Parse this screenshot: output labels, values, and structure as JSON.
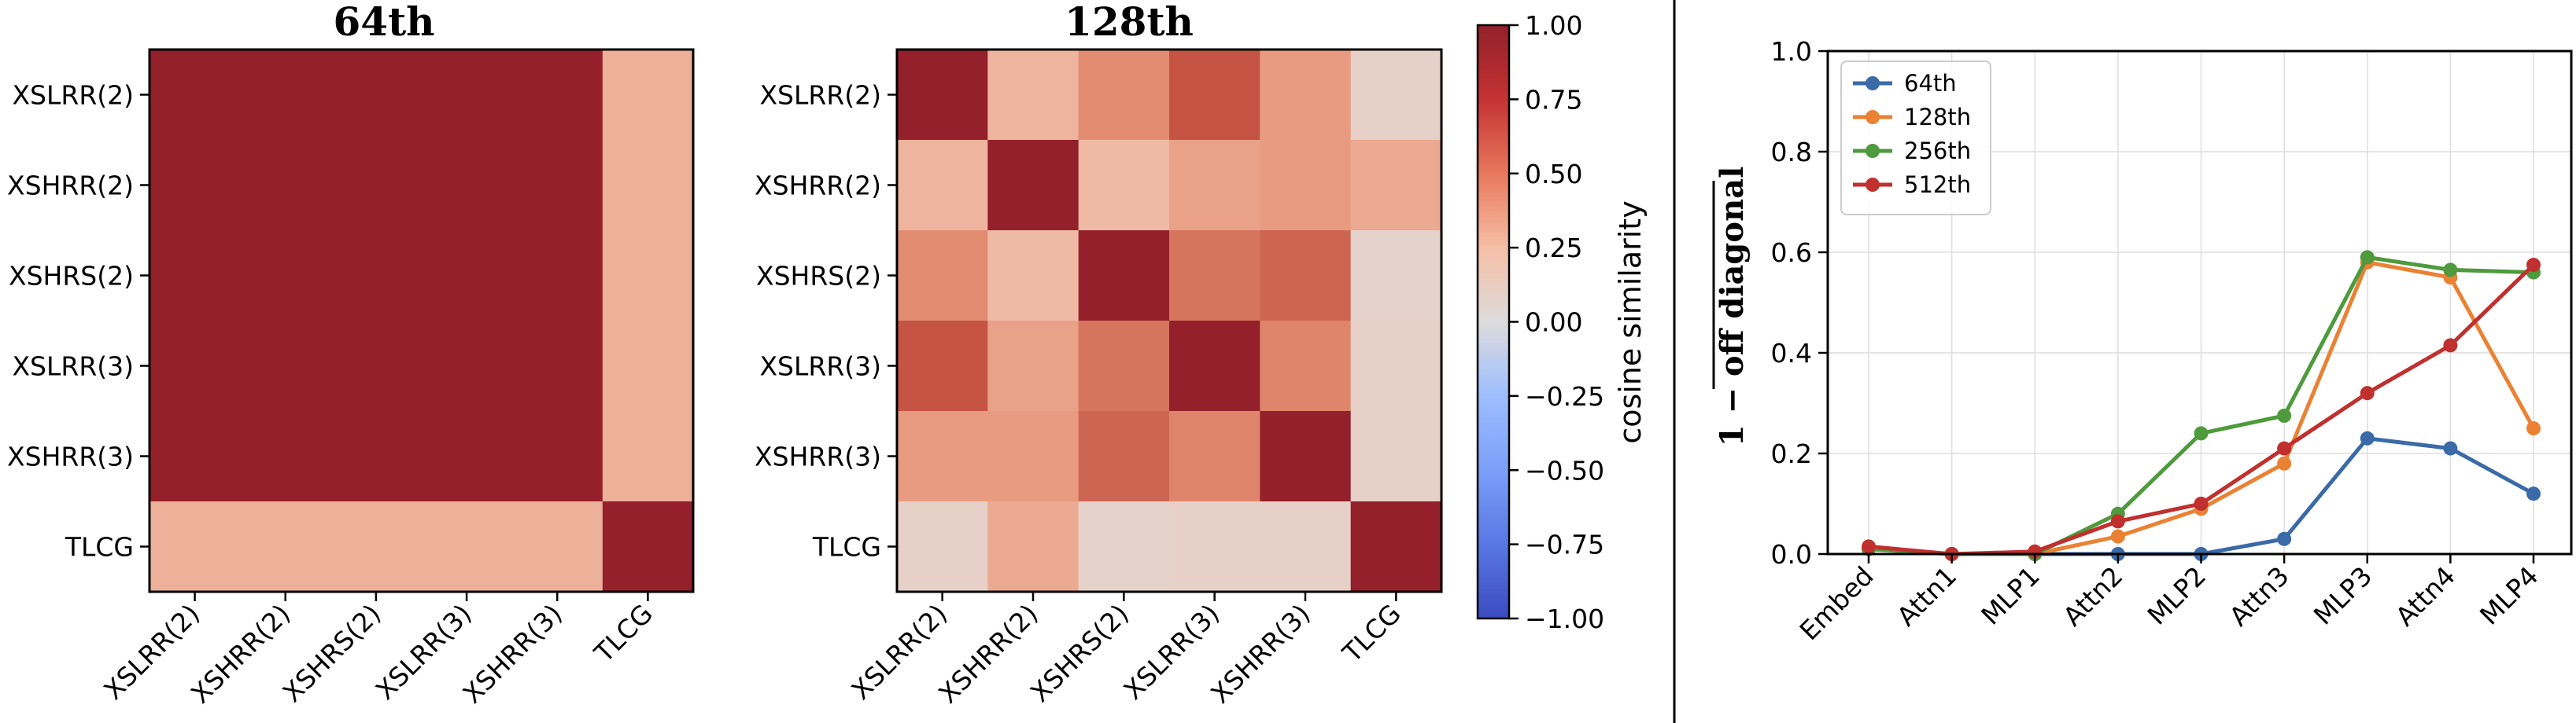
{
  "chart_data": [
    {
      "type": "heatmap",
      "title": "64th",
      "rows": [
        "XSLRR(2)",
        "XSHRR(2)",
        "XSHRS(2)",
        "XSLRR(3)",
        "XSHRR(3)",
        "TLCG"
      ],
      "cols": [
        "XSLRR(2)",
        "XSHRR(2)",
        "XSHRS(2)",
        "XSLRR(3)",
        "XSHRR(3)",
        "TLCG"
      ],
      "values": [
        [
          1.0,
          1.0,
          1.0,
          1.0,
          1.0,
          0.35
        ],
        [
          1.0,
          1.0,
          1.0,
          1.0,
          1.0,
          0.35
        ],
        [
          1.0,
          1.0,
          1.0,
          1.0,
          1.0,
          0.35
        ],
        [
          1.0,
          1.0,
          1.0,
          1.0,
          1.0,
          0.35
        ],
        [
          1.0,
          1.0,
          1.0,
          1.0,
          1.0,
          0.35
        ],
        [
          0.35,
          0.35,
          0.35,
          0.35,
          0.35,
          1.0
        ]
      ]
    },
    {
      "type": "heatmap",
      "title": "128th",
      "rows": [
        "XSLRR(2)",
        "XSHRR(2)",
        "XSHRS(2)",
        "XSLRR(3)",
        "XSHRR(3)",
        "TLCG"
      ],
      "cols": [
        "XSLRR(2)",
        "XSHRR(2)",
        "XSHRS(2)",
        "XSLRR(3)",
        "XSHRR(3)",
        "TLCG"
      ],
      "values": [
        [
          1.0,
          0.33,
          0.52,
          0.75,
          0.45,
          0.12
        ],
        [
          0.33,
          1.0,
          0.3,
          0.42,
          0.45,
          0.38
        ],
        [
          0.52,
          0.3,
          1.0,
          0.62,
          0.68,
          0.1
        ],
        [
          0.75,
          0.42,
          0.62,
          1.0,
          0.55,
          0.12
        ],
        [
          0.45,
          0.45,
          0.68,
          0.55,
          1.0,
          0.12
        ],
        [
          0.12,
          0.38,
          0.1,
          0.12,
          0.12,
          1.0
        ]
      ],
      "colorbar": {
        "label": "cosine similarity",
        "range": [
          -1.0,
          1.0
        ],
        "ticks": [
          "1.00",
          "0.75",
          "0.50",
          "0.25",
          "0.00",
          "−0.25",
          "−0.50",
          "−0.75",
          "−1.00"
        ],
        "tick_values": [
          1.0,
          0.75,
          0.5,
          0.25,
          0.0,
          -0.25,
          -0.5,
          -0.75,
          -1.0
        ],
        "colormap": "coolwarm"
      }
    },
    {
      "type": "line",
      "categories": [
        "Embed",
        "Attn1",
        "MLP1",
        "Attn2",
        "MLP2",
        "Attn3",
        "MLP3",
        "Attn4",
        "MLP4"
      ],
      "ylabel": "1 − off diagonal",
      "ylim": [
        0.0,
        1.0
      ],
      "yticks": [
        "0.0",
        "0.2",
        "0.4",
        "0.6",
        "0.8",
        "1.0"
      ],
      "ytick_values": [
        0.0,
        0.2,
        0.4,
        0.6,
        0.8,
        1.0
      ],
      "grid": true,
      "legend_position": "top-left",
      "series": [
        {
          "name": "64th",
          "color": "#3a6aa8",
          "values": [
            0.01,
            0.0,
            0.0,
            0.0,
            0.0,
            0.03,
            0.23,
            0.21,
            0.12
          ]
        },
        {
          "name": "128th",
          "color": "#ea8133",
          "values": [
            0.01,
            0.0,
            0.0,
            0.035,
            0.09,
            0.18,
            0.58,
            0.55,
            0.25
          ]
        },
        {
          "name": "256th",
          "color": "#4e9a3c",
          "values": [
            0.01,
            0.0,
            0.0,
            0.08,
            0.24,
            0.275,
            0.59,
            0.565,
            0.56
          ]
        },
        {
          "name": "512th",
          "color": "#c0302e",
          "values": [
            0.015,
            0.0,
            0.005,
            0.065,
            0.1,
            0.21,
            0.32,
            0.415,
            0.575
          ]
        }
      ]
    }
  ]
}
